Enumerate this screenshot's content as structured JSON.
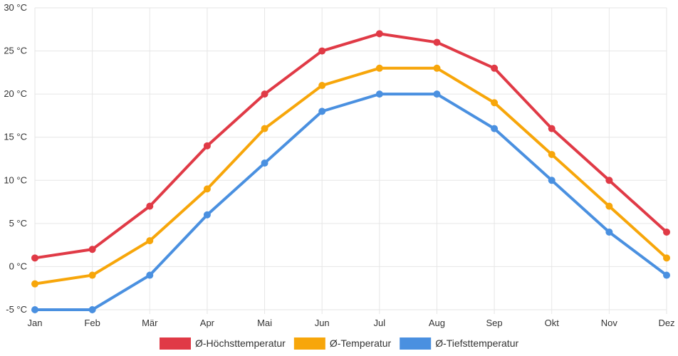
{
  "chart_data": {
    "type": "line",
    "categories": [
      "Jan",
      "Feb",
      "Mär",
      "Apr",
      "Mai",
      "Jun",
      "Jul",
      "Aug",
      "Sep",
      "Okt",
      "Nov",
      "Dez"
    ],
    "series": [
      {
        "name": "Ø-Höchsttemperatur",
        "color": "#e03a46",
        "values": [
          1,
          2,
          7,
          14,
          20,
          25,
          27,
          26,
          23,
          16,
          10,
          4
        ]
      },
      {
        "name": "Ø-Temperatur",
        "color": "#f7a60a",
        "values": [
          -2,
          -1,
          3,
          9,
          16,
          21,
          23,
          23,
          19,
          13,
          7,
          1
        ]
      },
      {
        "name": "Ø-Tiefsttemperatur",
        "color": "#4a90e0",
        "values": [
          -5,
          -5,
          -1,
          6,
          12,
          18,
          20,
          20,
          16,
          10,
          4,
          -1
        ]
      }
    ],
    "y_ticks": [
      30,
      25,
      20,
      15,
      10,
      5,
      0,
      -5
    ],
    "y_tick_labels": [
      "30 °C",
      "25 °C",
      "20 °C",
      "15 °C",
      "10 °C",
      "5 °C",
      "0 °C",
      "-5 °C"
    ],
    "ylim": [
      -5,
      30
    ],
    "grid": true,
    "legend_position": "bottom"
  }
}
